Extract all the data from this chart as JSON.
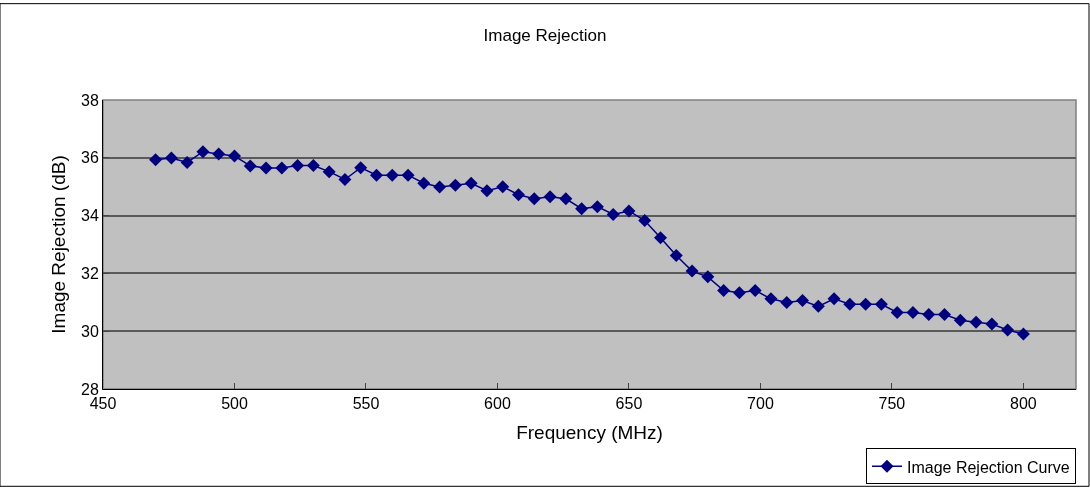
{
  "chart_data": {
    "type": "line",
    "title": "Image Rejection",
    "xlabel": "Frequency (MHz)",
    "ylabel": "Image Rejection (dB)",
    "x": [
      470,
      476,
      482,
      488,
      494,
      500,
      506,
      512,
      518,
      524,
      530,
      536,
      542,
      548,
      554,
      560,
      566,
      572,
      578,
      584,
      590,
      596,
      602,
      608,
      614,
      620,
      626,
      632,
      638,
      644,
      650,
      656,
      662,
      668,
      674,
      680,
      686,
      692,
      698,
      704,
      710,
      716,
      722,
      728,
      734,
      740,
      746,
      752,
      758,
      764,
      770,
      776,
      782,
      788,
      794,
      800
    ],
    "series": [
      {
        "name": "Image Rejection Curve",
        "color": "#000080",
        "values": [
          35.93,
          35.99,
          35.84,
          36.21,
          36.13,
          36.06,
          35.72,
          35.65,
          35.65,
          35.73,
          35.73,
          35.52,
          35.25,
          35.66,
          35.4,
          35.4,
          35.4,
          35.12,
          34.99,
          35.05,
          35.12,
          34.86,
          35.0,
          34.72,
          34.58,
          34.65,
          34.58,
          34.24,
          34.31,
          34.04,
          34.16,
          33.83,
          33.23,
          32.62,
          32.08,
          31.88,
          31.41,
          31.33,
          31.41,
          31.12,
          30.99,
          31.06,
          30.86,
          31.12,
          30.93,
          30.93,
          30.93,
          30.65,
          30.65,
          30.58,
          30.58,
          30.38,
          30.31,
          30.25,
          30.04,
          29.9
        ]
      }
    ],
    "xlim": [
      450,
      820
    ],
    "xticks": [
      450,
      500,
      550,
      600,
      650,
      700,
      750,
      800
    ],
    "ylim": [
      28,
      38
    ],
    "yticks": [
      28,
      30,
      32,
      34,
      36,
      38
    ],
    "grid": "y",
    "legend": "bottom right",
    "marker": "diamond",
    "line_style": "solid"
  }
}
